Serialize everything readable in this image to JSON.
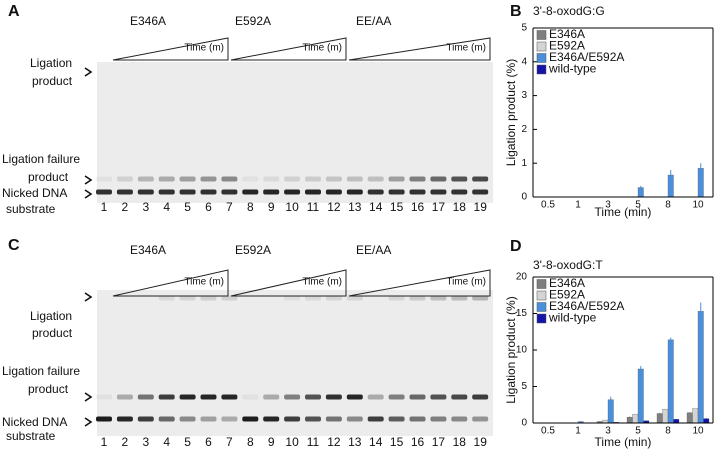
{
  "panels": [
    {
      "label": "A",
      "groups": [
        "E346A",
        "E592A",
        "EE/AA"
      ],
      "time_label": "Time (m)",
      "rows": [
        [
          "Ligation",
          "product"
        ],
        [
          "Ligation failure",
          "product"
        ],
        [
          "Nicked DNA",
          "substrate"
        ]
      ],
      "lanes": [
        1,
        2,
        3,
        4,
        5,
        6,
        7,
        8,
        9,
        10,
        11,
        12,
        13,
        14,
        15,
        16,
        17,
        18,
        19
      ]
    },
    {
      "label": "C",
      "groups": [
        "E346A",
        "E592A",
        "EE/AA"
      ],
      "time_label": "Time (m)",
      "rows": [
        [
          "Ligation",
          "product"
        ],
        [
          "Ligation failure",
          "product"
        ],
        [
          "Nicked DNA",
          "substrate"
        ]
      ],
      "lanes": [
        1,
        2,
        3,
        4,
        5,
        6,
        7,
        8,
        9,
        10,
        11,
        12,
        13,
        14,
        15,
        16,
        17,
        18,
        19
      ]
    }
  ],
  "chart_data": [
    {
      "type": "bar",
      "panel_label": "B",
      "title": "3'-8-oxodG:G",
      "ylabel": "Ligation product (%)",
      "xlabel": "Time (min)",
      "categories": [
        "0.5",
        "1",
        "3",
        "5",
        "8",
        "10"
      ],
      "ylim": [
        0,
        5
      ],
      "yticks": [
        0,
        1,
        2,
        3,
        4,
        5
      ],
      "series": [
        {
          "name": "E346A",
          "color": "#7f7f7f",
          "values": [
            0,
            0,
            0,
            0,
            0,
            0
          ],
          "errors": [
            0,
            0,
            0,
            0,
            0,
            0
          ]
        },
        {
          "name": "E592A",
          "color": "#d4d4d4",
          "values": [
            0,
            0,
            0,
            0,
            0,
            0
          ],
          "errors": [
            0,
            0,
            0,
            0,
            0,
            0
          ]
        },
        {
          "name": "E346A/E592A",
          "color": "#4a8fdb",
          "values": [
            0,
            0,
            0,
            0.28,
            0.65,
            0.85
          ],
          "errors": [
            0,
            0,
            0,
            0.05,
            0.15,
            0.15
          ]
        },
        {
          "name": "wild-type",
          "color": "#1414a8",
          "values": [
            0,
            0,
            0,
            0,
            0,
            0
          ],
          "errors": [
            0,
            0,
            0,
            0,
            0,
            0
          ]
        }
      ]
    },
    {
      "type": "bar",
      "panel_label": "D",
      "title": "3'-8-oxodG:T",
      "ylabel": "Ligation product (%)",
      "xlabel": "Time (min)",
      "categories": [
        "0.5",
        "1",
        "3",
        "5",
        "8",
        "10"
      ],
      "ylim": [
        0,
        20
      ],
      "yticks": [
        0,
        5,
        10,
        15,
        20
      ],
      "series": [
        {
          "name": "E346A",
          "color": "#7f7f7f",
          "values": [
            0,
            0,
            0.2,
            0.8,
            1.3,
            1.4
          ],
          "errors": [
            0,
            0,
            0.05,
            0.1,
            0.1,
            0.1
          ]
        },
        {
          "name": "E592A",
          "color": "#d4d4d4",
          "values": [
            0,
            0,
            0.4,
            1.2,
            1.9,
            2.0
          ],
          "errors": [
            0,
            0,
            0.05,
            0.1,
            0.1,
            0.1
          ]
        },
        {
          "name": "E346A/E592A",
          "color": "#4a8fdb",
          "values": [
            0,
            0.2,
            3.2,
            7.4,
            11.4,
            15.3
          ],
          "errors": [
            0,
            0.05,
            0.4,
            0.4,
            0.3,
            1.2
          ]
        },
        {
          "name": "wild-type",
          "color": "#1414a8",
          "values": [
            0,
            0,
            0.1,
            0.3,
            0.5,
            0.6
          ],
          "errors": [
            0,
            0,
            0.02,
            0.05,
            0.05,
            0.05
          ]
        }
      ]
    }
  ]
}
